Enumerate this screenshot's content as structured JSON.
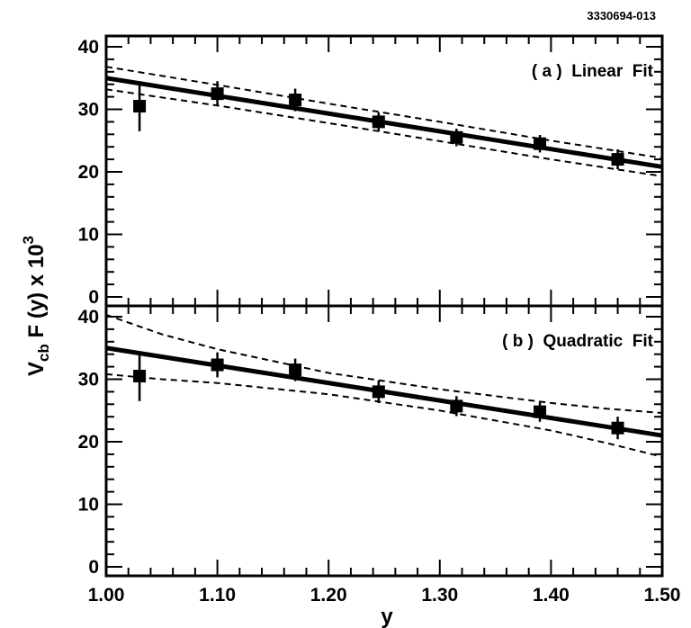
{
  "figure_id": "3330694-013",
  "chart_data": [
    {
      "type": "scatter",
      "panel_label": "( a )  Linear  Fit",
      "xlim": [
        1.0,
        1.5
      ],
      "ylim": [
        0,
        40
      ],
      "x_ticks": [
        "1.00",
        "1.10",
        "1.20",
        "1.30",
        "1.40",
        "1.50"
      ],
      "y_ticks": [
        "0",
        "10",
        "20",
        "30",
        "40"
      ],
      "points": [
        {
          "x": 1.03,
          "y": 30.5,
          "err": 4.0
        },
        {
          "x": 1.1,
          "y": 32.5,
          "err": 2.0
        },
        {
          "x": 1.17,
          "y": 31.5,
          "err": 1.8
        },
        {
          "x": 1.245,
          "y": 28.0,
          "err": 1.5
        },
        {
          "x": 1.315,
          "y": 25.5,
          "err": 1.4
        },
        {
          "x": 1.39,
          "y": 24.5,
          "err": 1.4
        },
        {
          "x": 1.46,
          "y": 22.0,
          "err": 1.6
        }
      ],
      "fit": {
        "x": [
          1.0,
          1.5
        ],
        "y": [
          35.0,
          20.8
        ]
      },
      "band_upper": {
        "x": [
          1.0,
          1.1,
          1.2,
          1.3,
          1.4,
          1.5
        ],
        "y": [
          36.8,
          33.9,
          30.9,
          28.0,
          25.0,
          22.2
        ]
      },
      "band_lower": {
        "x": [
          1.0,
          1.1,
          1.2,
          1.3,
          1.4,
          1.5
        ],
        "y": [
          33.2,
          30.6,
          27.8,
          24.9,
          22.0,
          19.3
        ]
      }
    },
    {
      "type": "scatter",
      "panel_label": "( b )  Quadratic  Fit",
      "xlim": [
        1.0,
        1.5
      ],
      "ylim": [
        0,
        40
      ],
      "x_ticks": [
        "1.00",
        "1.10",
        "1.20",
        "1.30",
        "1.40",
        "1.50"
      ],
      "y_ticks": [
        "0",
        "10",
        "20",
        "30",
        "40"
      ],
      "xlabel": "y",
      "points": [
        {
          "x": 1.03,
          "y": 30.5,
          "err": 4.0
        },
        {
          "x": 1.1,
          "y": 32.3,
          "err": 2.0
        },
        {
          "x": 1.17,
          "y": 31.5,
          "err": 1.8
        },
        {
          "x": 1.245,
          "y": 28.0,
          "err": 1.8
        },
        {
          "x": 1.315,
          "y": 25.7,
          "err": 1.6
        },
        {
          "x": 1.39,
          "y": 24.8,
          "err": 1.6
        },
        {
          "x": 1.46,
          "y": 22.2,
          "err": 1.8
        }
      ],
      "fit": {
        "x": [
          1.0,
          1.5
        ],
        "y": [
          35.0,
          21.0
        ]
      },
      "band_upper": {
        "x": [
          1.0,
          1.05,
          1.1,
          1.2,
          1.3,
          1.4,
          1.45,
          1.5
        ],
        "y": [
          40.3,
          37.2,
          34.8,
          31.0,
          28.4,
          26.2,
          25.3,
          24.6
        ]
      },
      "band_lower": {
        "x": [
          1.0,
          1.05,
          1.1,
          1.2,
          1.3,
          1.4,
          1.45,
          1.5
        ],
        "y": [
          30.8,
          30.0,
          29.4,
          27.6,
          25.0,
          21.8,
          19.8,
          17.6
        ]
      }
    }
  ],
  "ylabel": {
    "v": "V",
    "sub": "cb",
    "rest": " F (y)  x  10",
    "sup": "3"
  }
}
